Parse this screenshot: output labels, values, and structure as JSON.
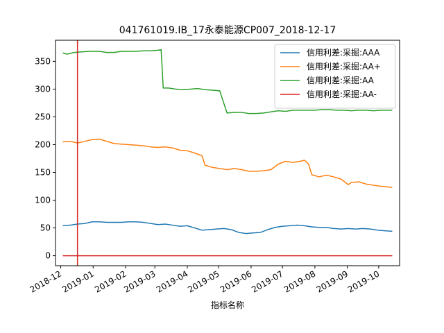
{
  "chart_data": {
    "type": "line",
    "title": "041761019.IB_17永泰能源CP007_2018-12-17",
    "xlabel": "指标名称",
    "ylabel": "",
    "x_axis": {
      "type": "date",
      "range": [
        "2018-11-26",
        "2019-10-21"
      ],
      "ticks": [
        "2018-12",
        "2019-01",
        "2019-02",
        "2019-03",
        "2019-04",
        "2019-05",
        "2019-06",
        "2019-07",
        "2019-08",
        "2019-09",
        "2019-10"
      ],
      "tick_label_rotation_deg": 30
    },
    "y_axis": {
      "range": [
        -18,
        388
      ],
      "ticks": [
        0,
        50,
        100,
        150,
        200,
        250,
        300,
        350
      ]
    },
    "grid": false,
    "legend": {
      "placement": "top-right"
    },
    "series": [
      {
        "name": "信用利差:采掘:AAA",
        "color": "#1f77b4",
        "points": [
          [
            "2018-12-03",
            54
          ],
          [
            "2018-12-10",
            55
          ],
          [
            "2018-12-17",
            57
          ],
          [
            "2018-12-24",
            58
          ],
          [
            "2018-12-31",
            61
          ],
          [
            "2019-01-07",
            61
          ],
          [
            "2019-01-14",
            60
          ],
          [
            "2019-01-21",
            60
          ],
          [
            "2019-01-28",
            60
          ],
          [
            "2019-02-04",
            61
          ],
          [
            "2019-02-11",
            61
          ],
          [
            "2019-02-18",
            60
          ],
          [
            "2019-02-25",
            58
          ],
          [
            "2019-03-04",
            56
          ],
          [
            "2019-03-11",
            57
          ],
          [
            "2019-03-18",
            55
          ],
          [
            "2019-03-25",
            53
          ],
          [
            "2019-04-01",
            54
          ],
          [
            "2019-04-08",
            50
          ],
          [
            "2019-04-15",
            46
          ],
          [
            "2019-04-22",
            47
          ],
          [
            "2019-04-29",
            48
          ],
          [
            "2019-05-06",
            49
          ],
          [
            "2019-05-13",
            47
          ],
          [
            "2019-05-20",
            42
          ],
          [
            "2019-05-27",
            40
          ],
          [
            "2019-06-03",
            41
          ],
          [
            "2019-06-10",
            42
          ],
          [
            "2019-06-17",
            47
          ],
          [
            "2019-06-24",
            51
          ],
          [
            "2019-07-01",
            53
          ],
          [
            "2019-07-08",
            54
          ],
          [
            "2019-07-15",
            55
          ],
          [
            "2019-07-22",
            54
          ],
          [
            "2019-07-29",
            52
          ],
          [
            "2019-08-05",
            51
          ],
          [
            "2019-08-12",
            51
          ],
          [
            "2019-08-19",
            49
          ],
          [
            "2019-08-26",
            48
          ],
          [
            "2019-09-02",
            49
          ],
          [
            "2019-09-09",
            48
          ],
          [
            "2019-09-16",
            49
          ],
          [
            "2019-09-23",
            48
          ],
          [
            "2019-09-30",
            46
          ],
          [
            "2019-10-07",
            45
          ],
          [
            "2019-10-14",
            44
          ]
        ]
      },
      {
        "name": "信用利差:采掘:AA+",
        "color": "#ff7f0e",
        "points": [
          [
            "2018-12-03",
            205
          ],
          [
            "2018-12-10",
            206
          ],
          [
            "2018-12-17",
            203
          ],
          [
            "2018-12-24",
            206
          ],
          [
            "2018-12-31",
            209
          ],
          [
            "2019-01-07",
            210
          ],
          [
            "2019-01-14",
            206
          ],
          [
            "2019-01-21",
            202
          ],
          [
            "2019-01-28",
            201
          ],
          [
            "2019-02-04",
            200
          ],
          [
            "2019-02-11",
            199
          ],
          [
            "2019-02-18",
            198
          ],
          [
            "2019-02-25",
            196
          ],
          [
            "2019-03-04",
            195
          ],
          [
            "2019-03-11",
            196
          ],
          [
            "2019-03-18",
            194
          ],
          [
            "2019-03-25",
            190
          ],
          [
            "2019-04-01",
            189
          ],
          [
            "2019-04-08",
            185
          ],
          [
            "2019-04-15",
            180
          ],
          [
            "2019-04-18",
            163
          ],
          [
            "2019-04-25",
            159
          ],
          [
            "2019-05-02",
            157
          ],
          [
            "2019-05-09",
            155
          ],
          [
            "2019-05-16",
            157
          ],
          [
            "2019-05-23",
            155
          ],
          [
            "2019-05-30",
            152
          ],
          [
            "2019-06-06",
            152
          ],
          [
            "2019-06-13",
            153
          ],
          [
            "2019-06-20",
            155
          ],
          [
            "2019-06-27",
            165
          ],
          [
            "2019-07-04",
            170
          ],
          [
            "2019-07-11",
            168
          ],
          [
            "2019-07-18",
            170
          ],
          [
            "2019-07-22",
            172
          ],
          [
            "2019-07-26",
            165
          ],
          [
            "2019-07-29",
            146
          ],
          [
            "2019-08-05",
            142
          ],
          [
            "2019-08-12",
            145
          ],
          [
            "2019-08-19",
            142
          ],
          [
            "2019-08-26",
            138
          ],
          [
            "2019-09-02",
            128
          ],
          [
            "2019-09-05",
            132
          ],
          [
            "2019-09-12",
            133
          ],
          [
            "2019-09-19",
            129
          ],
          [
            "2019-09-26",
            127
          ],
          [
            "2019-10-03",
            125
          ],
          [
            "2019-10-14",
            123
          ]
        ]
      },
      {
        "name": "信用利差:采掘:AA",
        "color": "#2ca02c",
        "points": [
          [
            "2018-12-03",
            365
          ],
          [
            "2018-12-07",
            363
          ],
          [
            "2018-12-14",
            366
          ],
          [
            "2018-12-21",
            367
          ],
          [
            "2018-12-28",
            368
          ],
          [
            "2019-01-07",
            368
          ],
          [
            "2019-01-14",
            366
          ],
          [
            "2019-01-21",
            366
          ],
          [
            "2019-01-28",
            368
          ],
          [
            "2019-02-04",
            368
          ],
          [
            "2019-02-11",
            368
          ],
          [
            "2019-02-18",
            369
          ],
          [
            "2019-02-25",
            369
          ],
          [
            "2019-03-04",
            370
          ],
          [
            "2019-03-07",
            371
          ],
          [
            "2019-03-09",
            302
          ],
          [
            "2019-03-14",
            302
          ],
          [
            "2019-03-21",
            300
          ],
          [
            "2019-03-28",
            299
          ],
          [
            "2019-04-04",
            300
          ],
          [
            "2019-04-11",
            301
          ],
          [
            "2019-04-18",
            299
          ],
          [
            "2019-04-25",
            298
          ],
          [
            "2019-05-02",
            297
          ],
          [
            "2019-05-09",
            257
          ],
          [
            "2019-05-16",
            258
          ],
          [
            "2019-05-23",
            258
          ],
          [
            "2019-05-30",
            256
          ],
          [
            "2019-06-06",
            256
          ],
          [
            "2019-06-13",
            257
          ],
          [
            "2019-06-20",
            259
          ],
          [
            "2019-06-27",
            261
          ],
          [
            "2019-07-04",
            260
          ],
          [
            "2019-07-11",
            262
          ],
          [
            "2019-07-18",
            262
          ],
          [
            "2019-07-25",
            262
          ],
          [
            "2019-08-01",
            262
          ],
          [
            "2019-08-08",
            263
          ],
          [
            "2019-08-15",
            263
          ],
          [
            "2019-08-22",
            262
          ],
          [
            "2019-08-29",
            262
          ],
          [
            "2019-09-05",
            261
          ],
          [
            "2019-09-12",
            262
          ],
          [
            "2019-09-19",
            262
          ],
          [
            "2019-09-26",
            261
          ],
          [
            "2019-10-03",
            262
          ],
          [
            "2019-10-14",
            262
          ]
        ]
      },
      {
        "name": "信用利差:采掘:AA-",
        "color": "#d62728",
        "points": [
          [
            "2018-12-03",
            0
          ],
          [
            "2019-10-14",
            0
          ]
        ]
      }
    ],
    "reference_lines": [
      {
        "orientation": "vertical",
        "x": "2018-12-17",
        "color": "#d62728"
      }
    ]
  }
}
